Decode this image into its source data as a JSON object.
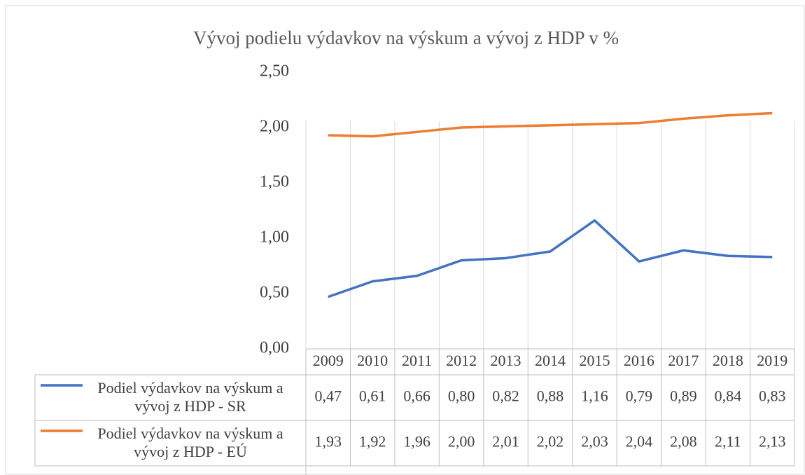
{
  "chart_data": {
    "type": "line",
    "title": "Vývoj podielu výdavkov na výskum a vývoj z HDP v %",
    "categories": [
      "2009",
      "2010",
      "2011",
      "2012",
      "2013",
      "2014",
      "2015",
      "2016",
      "2017",
      "2018",
      "2019"
    ],
    "series": [
      {
        "name": "Podiel výdavkov na výskum a vývoj z HDP - SR",
        "color": "#4472c4",
        "values": [
          0.47,
          0.61,
          0.66,
          0.8,
          0.82,
          0.88,
          1.16,
          0.79,
          0.89,
          0.84,
          0.83
        ],
        "value_labels": [
          "0,47",
          "0,61",
          "0,66",
          "0,80",
          "0,82",
          "0,88",
          "1,16",
          "0,79",
          "0,89",
          "0,84",
          "0,83"
        ]
      },
      {
        "name": "Podiel výdavkov na výskum a vývoj z HDP - EÚ",
        "color": "#ed7d31",
        "values": [
          1.93,
          1.92,
          1.96,
          2.0,
          2.01,
          2.02,
          2.03,
          2.04,
          2.08,
          2.11,
          2.13
        ],
        "value_labels": [
          "1,93",
          "1,92",
          "1,96",
          "2,00",
          "2,01",
          "2,02",
          "2,03",
          "2,04",
          "2,08",
          "2,11",
          "2,13"
        ]
      }
    ],
    "ylim": [
      0,
      2.5
    ],
    "yticks": [
      {
        "value": 0,
        "label": "0,00"
      },
      {
        "value": 0.5,
        "label": "0,50"
      },
      {
        "value": 1,
        "label": "1,00"
      },
      {
        "value": 1.5,
        "label": "1,50"
      },
      {
        "value": 2,
        "label": "2,00"
      },
      {
        "value": 2.5,
        "label": "2,50"
      }
    ],
    "grid": true
  }
}
